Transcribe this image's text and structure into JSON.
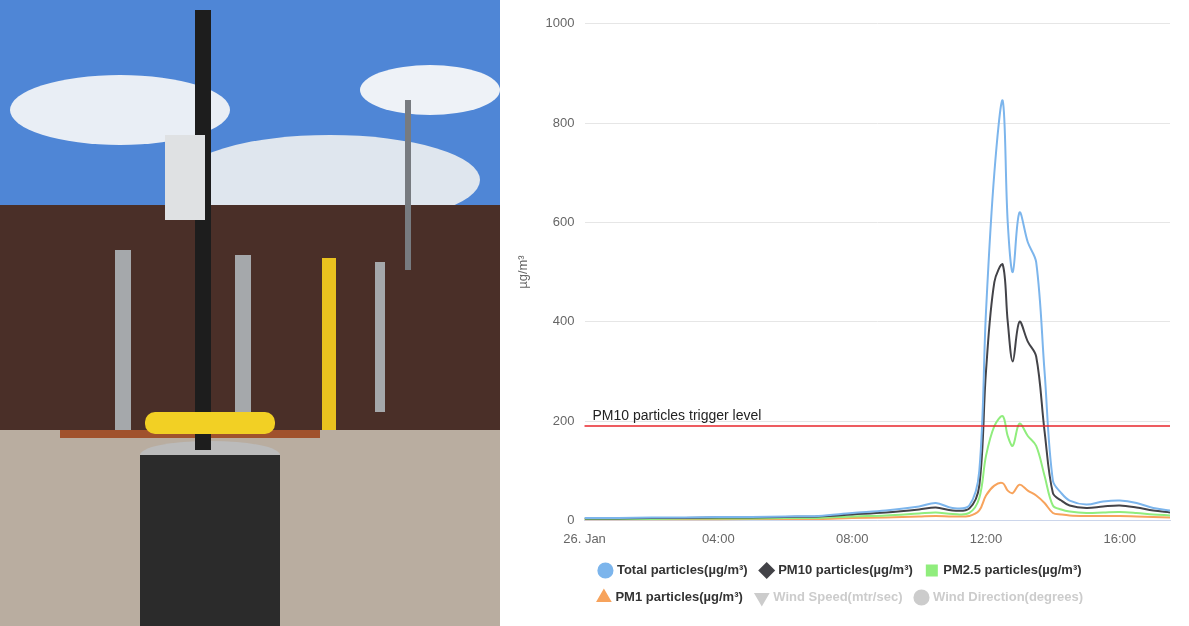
{
  "chart_data": {
    "type": "line",
    "y_label": "µg/m³",
    "x": [
      0,
      1,
      2,
      3,
      4,
      5,
      6,
      7,
      8,
      9,
      10,
      10.5,
      11,
      11.5,
      11.8,
      12,
      12.25,
      12.5,
      12.65,
      12.8,
      13,
      13.25,
      13.5,
      13.75,
      14,
      14.25,
      14.5,
      15,
      15.5,
      16,
      16.5,
      17,
      17.5
    ],
    "series": [
      {
        "name": "Total particles(µg/m³)",
        "color": "#7cb5ec",
        "marker": "circle",
        "values": [
          5,
          5,
          6,
          6,
          7,
          7,
          8,
          9,
          15,
          20,
          28,
          35,
          25,
          30,
          100,
          420,
          700,
          845,
          600,
          500,
          620,
          560,
          520,
          300,
          80,
          55,
          40,
          32,
          38,
          40,
          35,
          25,
          20
        ]
      },
      {
        "name": "PM10 particles(µg/m³)",
        "color": "#434348",
        "marker": "diamond",
        "values": [
          4,
          4,
          5,
          5,
          6,
          6,
          7,
          8,
          12,
          16,
          22,
          26,
          20,
          24,
          70,
          300,
          480,
          515,
          400,
          320,
          400,
          360,
          330,
          180,
          55,
          40,
          30,
          25,
          28,
          30,
          26,
          20,
          16
        ]
      },
      {
        "name": "PM2.5 particles(µg/m³)",
        "color": "#90ed7d",
        "marker": "square",
        "values": [
          3,
          3,
          3,
          4,
          4,
          4,
          5,
          5,
          8,
          10,
          14,
          16,
          13,
          15,
          45,
          130,
          190,
          210,
          170,
          150,
          195,
          170,
          150,
          90,
          30,
          22,
          18,
          15,
          16,
          17,
          15,
          12,
          10
        ]
      },
      {
        "name": "PM1 particles(µg/m³)",
        "color": "#f7a35c",
        "marker": "triangle",
        "values": [
          2,
          2,
          2,
          2,
          2,
          3,
          3,
          3,
          5,
          6,
          8,
          9,
          8,
          9,
          20,
          50,
          70,
          75,
          60,
          55,
          72,
          60,
          50,
          35,
          15,
          12,
          10,
          9,
          9,
          9,
          8,
          7,
          6
        ]
      },
      {
        "name": "Wind Speed(mtr/sec)",
        "color": "#cccccc",
        "marker": "triangle-down",
        "values": [
          null,
          null,
          null,
          null,
          null,
          null,
          null,
          null,
          null,
          null,
          null,
          null,
          null,
          null,
          null,
          null,
          null,
          null,
          null,
          null,
          null,
          null,
          null,
          null,
          null,
          null,
          null,
          null,
          null,
          null,
          null,
          null,
          null
        ]
      },
      {
        "name": "Wind Direction(degrees)",
        "color": "#cccccc",
        "marker": "circle",
        "values": [
          null,
          null,
          null,
          null,
          null,
          null,
          null,
          null,
          null,
          null,
          null,
          null,
          null,
          null,
          null,
          null,
          null,
          null,
          null,
          null,
          null,
          null,
          null,
          null,
          null,
          null,
          null,
          null,
          null,
          null,
          null,
          null,
          null
        ]
      }
    ],
    "annotations": [
      {
        "text": "PM10 particles trigger level",
        "value": 190,
        "color": "#e8262b"
      }
    ],
    "xlim": [
      0,
      17.5
    ],
    "xticks": [
      {
        "value": 0,
        "label": "26. Jan"
      },
      {
        "value": 4,
        "label": "04:00"
      },
      {
        "value": 8,
        "label": "08:00"
      },
      {
        "value": 12,
        "label": "12:00"
      },
      {
        "value": 16,
        "label": "16:00"
      }
    ],
    "ylim": [
      0,
      1000
    ],
    "yticks": [
      0,
      200,
      400,
      600,
      800,
      1000
    ],
    "grid": true,
    "legend": "bottom"
  }
}
